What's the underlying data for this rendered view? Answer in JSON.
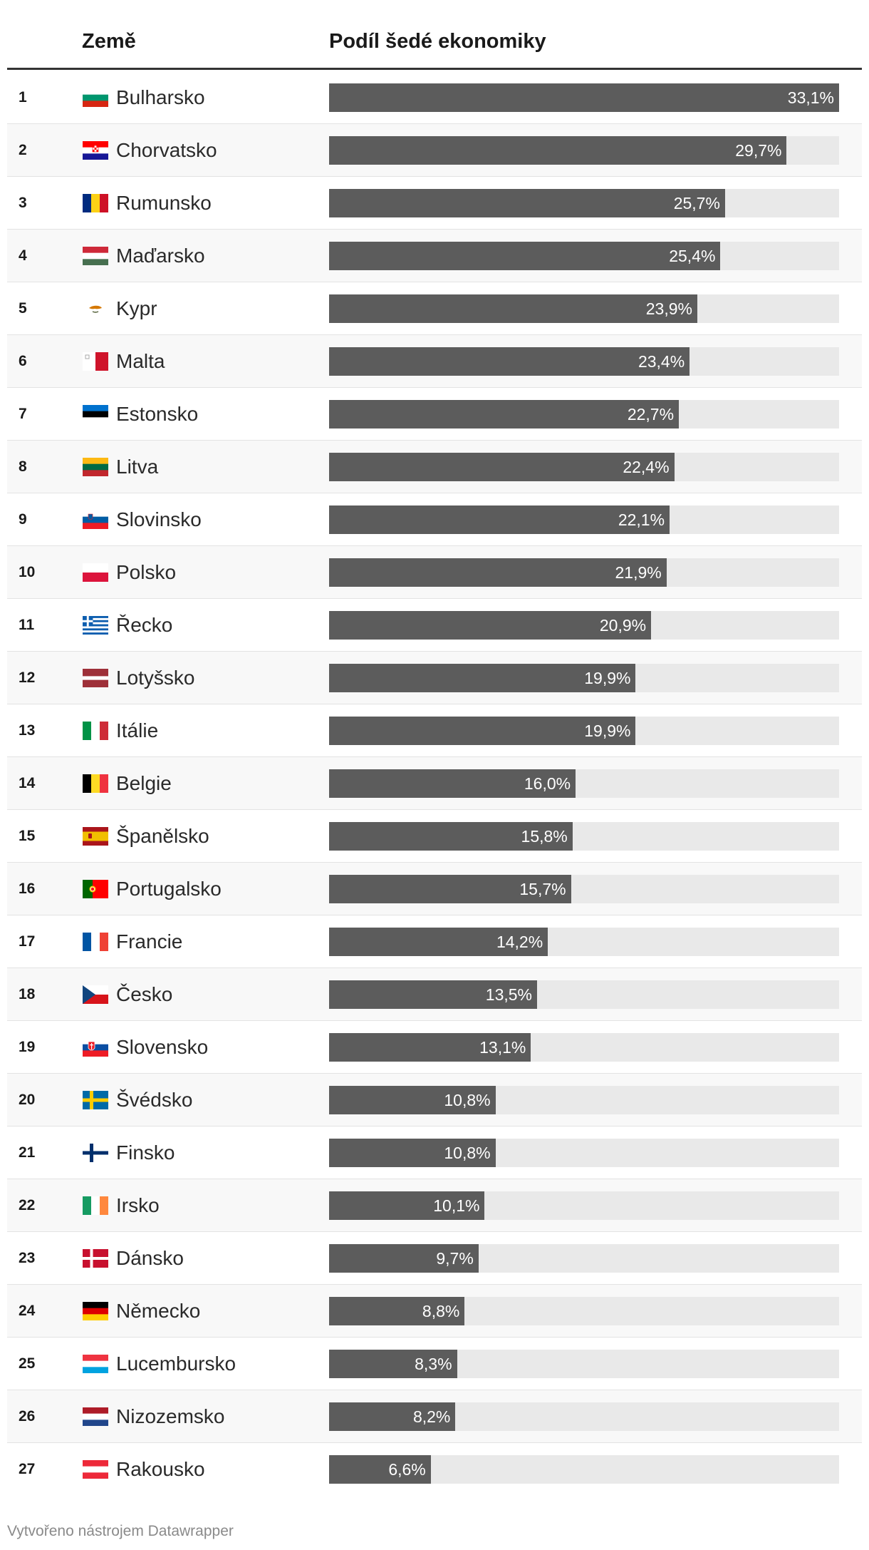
{
  "header": {
    "country_label": "Země",
    "share_label": "Podíl šedé ekonomiky"
  },
  "footer": "Vytvořeno nástrojem Datawrapper",
  "colors": {
    "bar": "#5c5c5c",
    "track": "#e9e9e9",
    "row_alt": "#f8f8f8"
  },
  "chart_data": {
    "type": "bar",
    "orientation": "horizontal",
    "title": "",
    "xlabel": "Podíl šedé ekonomiky",
    "ylabel": "Země",
    "xlim": [
      0,
      33.1
    ],
    "unit": "%",
    "rows": [
      {
        "rank": "1",
        "country": "Bulharsko",
        "flag": "bg",
        "value": 33.1,
        "label": "33,1%"
      },
      {
        "rank": "2",
        "country": "Chorvatsko",
        "flag": "hr",
        "value": 29.7,
        "label": "29,7%"
      },
      {
        "rank": "3",
        "country": "Rumunsko",
        "flag": "ro",
        "value": 25.7,
        "label": "25,7%"
      },
      {
        "rank": "4",
        "country": "Maďarsko",
        "flag": "hu",
        "value": 25.4,
        "label": "25,4%"
      },
      {
        "rank": "5",
        "country": "Kypr",
        "flag": "cy",
        "value": 23.9,
        "label": "23,9%"
      },
      {
        "rank": "6",
        "country": "Malta",
        "flag": "mt",
        "value": 23.4,
        "label": "23,4%"
      },
      {
        "rank": "7",
        "country": "Estonsko",
        "flag": "ee",
        "value": 22.7,
        "label": "22,7%"
      },
      {
        "rank": "8",
        "country": "Litva",
        "flag": "lt",
        "value": 22.4,
        "label": "22,4%"
      },
      {
        "rank": "9",
        "country": "Slovinsko",
        "flag": "si",
        "value": 22.1,
        "label": "22,1%"
      },
      {
        "rank": "10",
        "country": "Polsko",
        "flag": "pl",
        "value": 21.9,
        "label": "21,9%"
      },
      {
        "rank": "11",
        "country": "Řecko",
        "flag": "gr",
        "value": 20.9,
        "label": "20,9%"
      },
      {
        "rank": "12",
        "country": "Lotyšsko",
        "flag": "lv",
        "value": 19.9,
        "label": "19,9%"
      },
      {
        "rank": "13",
        "country": "Itálie",
        "flag": "it",
        "value": 19.9,
        "label": "19,9%"
      },
      {
        "rank": "14",
        "country": "Belgie",
        "flag": "be",
        "value": 16.0,
        "label": "16,0%"
      },
      {
        "rank": "15",
        "country": "Španělsko",
        "flag": "es",
        "value": 15.8,
        "label": "15,8%"
      },
      {
        "rank": "16",
        "country": "Portugalsko",
        "flag": "pt",
        "value": 15.7,
        "label": "15,7%"
      },
      {
        "rank": "17",
        "country": "Francie",
        "flag": "fr",
        "value": 14.2,
        "label": "14,2%"
      },
      {
        "rank": "18",
        "country": "Česko",
        "flag": "cz",
        "value": 13.5,
        "label": "13,5%"
      },
      {
        "rank": "19",
        "country": "Slovensko",
        "flag": "sk",
        "value": 13.1,
        "label": "13,1%"
      },
      {
        "rank": "20",
        "country": "Švédsko",
        "flag": "se",
        "value": 10.8,
        "label": "10,8%"
      },
      {
        "rank": "21",
        "country": "Finsko",
        "flag": "fi",
        "value": 10.8,
        "label": "10,8%"
      },
      {
        "rank": "22",
        "country": "Irsko",
        "flag": "ie",
        "value": 10.1,
        "label": "10,1%"
      },
      {
        "rank": "23",
        "country": "Dánsko",
        "flag": "dk",
        "value": 9.7,
        "label": "9,7%"
      },
      {
        "rank": "24",
        "country": "Německo",
        "flag": "de",
        "value": 8.8,
        "label": "8,8%"
      },
      {
        "rank": "25",
        "country": "Lucembursko",
        "flag": "lu",
        "value": 8.3,
        "label": "8,3%"
      },
      {
        "rank": "26",
        "country": "Nizozemsko",
        "flag": "nl",
        "value": 8.2,
        "label": "8,2%"
      },
      {
        "rank": "27",
        "country": "Rakousko",
        "flag": "at",
        "value": 6.6,
        "label": "6,6%"
      }
    ]
  }
}
